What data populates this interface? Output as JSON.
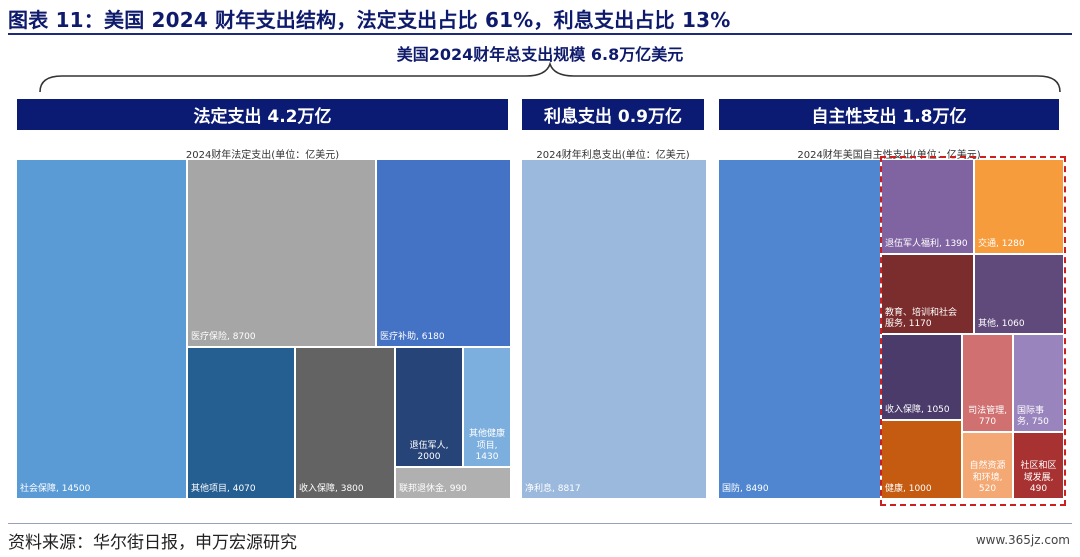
{
  "figure": {
    "title": "图表 11：美国 2024 财年支出结构，法定支出占比 61%，利息支出占比 13%",
    "total_label": "美国2024财年总支出规模 6.8万亿美元",
    "source": "资料来源：华尔街日报，申万宏源研究",
    "watermark": "www.365jz.com"
  },
  "colors": {
    "banner": "#0b1a73",
    "title": "#0e1a6b",
    "highlight_border": "#cc1f1f"
  },
  "chart_data": [
    {
      "type": "treemap",
      "banner": "法定支出 4.2万亿",
      "title": "2024财年法定支出(单位：亿美元)",
      "items": [
        {
          "label": "社会保障, 14500",
          "value": 14500,
          "color": "#5b9bd5"
        },
        {
          "label": "医疗保险, 8700",
          "value": 8700,
          "color": "#a6a6a6"
        },
        {
          "label": "医疗补助, 6180",
          "value": 6180,
          "color": "#4472c4"
        },
        {
          "label": "其他项目, 4070",
          "value": 4070,
          "color": "#255e91"
        },
        {
          "label": "收入保障, 3800",
          "value": 3800,
          "color": "#636363"
        },
        {
          "label": "退伍军人, 2000",
          "value": 2000,
          "color": "#264478"
        },
        {
          "label": "其他健康项目, 1430",
          "value": 1430,
          "color": "#7cafdd"
        },
        {
          "label": "联邦退休金, 990",
          "value": 990,
          "color": "#b0b0b0"
        }
      ]
    },
    {
      "type": "treemap",
      "banner": "利息支出 0.9万亿",
      "title": "2024财年利息支出(单位：亿美元)",
      "items": [
        {
          "label": "净利息, 8817",
          "value": 8817,
          "color": "#9bb9dc"
        }
      ]
    },
    {
      "type": "treemap",
      "banner": "自主性支出  1.8万亿",
      "title": "2024财年美国自主性支出(单位：亿美元)",
      "items": [
        {
          "label": "国防, 8490",
          "value": 8490,
          "color": "#4f86cf"
        },
        {
          "label": "退伍军人福利, 1390",
          "value": 1390,
          "color": "#8064a2"
        },
        {
          "label": "交通, 1280",
          "value": 1280,
          "color": "#f79c3c"
        },
        {
          "label": "教育、培训和社会服务, 1170",
          "value": 1170,
          "color": "#7b2c2c"
        },
        {
          "label": "其他, 1060",
          "value": 1060,
          "color": "#604a7b"
        },
        {
          "label": "收入保障, 1050",
          "value": 1050,
          "color": "#4a3b6b"
        },
        {
          "label": "司法管理, 770",
          "value": 770,
          "color": "#d07070"
        },
        {
          "label": "国际事务, 750",
          "value": 750,
          "color": "#9a84bd"
        },
        {
          "label": "健康, 1000",
          "value": 1000,
          "color": "#c55a11"
        },
        {
          "label": "自然资源和环境, 520",
          "value": 520,
          "color": "#f4a873"
        },
        {
          "label": "社区和区域发展, 490",
          "value": 490,
          "color": "#a83232"
        }
      ]
    }
  ]
}
